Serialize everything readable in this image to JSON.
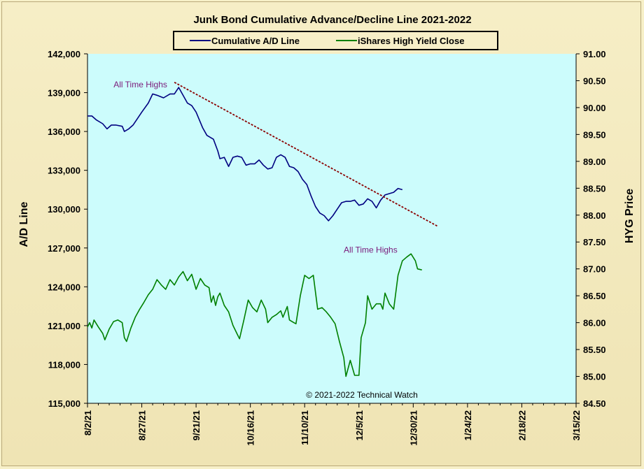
{
  "chart_data": {
    "type": "line",
    "title": "Junk Bond Cumulative Advance/Decline Line 2021-2022",
    "ylabel_left": "A/D Line",
    "ylabel_right": "HYG Price",
    "copyright": "© 2021-2022 Technical Watch",
    "x_tick_labels": [
      "8/2/21",
      "8/27/21",
      "9/21/21",
      "10/16/21",
      "11/10/21",
      "12/5/21",
      "12/30/21",
      "1/24/22",
      "2/18/22",
      "3/15/22"
    ],
    "x_range_days": [
      0,
      225
    ],
    "ylim_left": [
      115000,
      142000
    ],
    "ylim_right": [
      84.5,
      91.0
    ],
    "left_tick_labels": [
      "115,000",
      "118,000",
      "121,000",
      "124,000",
      "127,000",
      "130,000",
      "133,000",
      "136,000",
      "139,000",
      "142,000"
    ],
    "right_tick_labels": [
      "84.50",
      "85.00",
      "85.50",
      "86.00",
      "86.50",
      "87.00",
      "87.50",
      "88.00",
      "88.50",
      "89.00",
      "89.50",
      "90.00",
      "90.50",
      "91.00"
    ],
    "legend_position": "top-center",
    "grid": false,
    "colors": {
      "plot_bg": "#ccfcfc",
      "ad_line": "#000080",
      "hyg": "#008000",
      "trendline": "#8b0000",
      "annotation": "#7a1a7a"
    },
    "annotations": [
      {
        "text": "All Time  Highs",
        "series": "Cumulative A/D Line",
        "x_day": 12,
        "y": 139400
      },
      {
        "text": "All Time  Highs",
        "series": "iShares High Yield Close",
        "x_day": 118,
        "y": 87.3
      }
    ],
    "trendline": {
      "axis": "left",
      "points": [
        [
          40,
          139800
        ],
        [
          161,
          128700
        ]
      ]
    },
    "series": [
      {
        "name": "Cumulative A/D Line",
        "axis": "left",
        "points": [
          [
            0,
            137200
          ],
          [
            2,
            137200
          ],
          [
            4,
            136900
          ],
          [
            7,
            136600
          ],
          [
            9,
            136200
          ],
          [
            11,
            136500
          ],
          [
            13,
            136500
          ],
          [
            16,
            136400
          ],
          [
            17,
            136000
          ],
          [
            19,
            136200
          ],
          [
            21,
            136500
          ],
          [
            23,
            137000
          ],
          [
            25,
            137500
          ],
          [
            28,
            138200
          ],
          [
            30,
            138900
          ],
          [
            32,
            138800
          ],
          [
            35,
            138600
          ],
          [
            38,
            138900
          ],
          [
            40,
            138900
          ],
          [
            42,
            139400
          ],
          [
            44,
            138800
          ],
          [
            46,
            138200
          ],
          [
            48,
            138000
          ],
          [
            50,
            137500
          ],
          [
            53,
            136300
          ],
          [
            55,
            135700
          ],
          [
            58,
            135400
          ],
          [
            60,
            134500
          ],
          [
            61,
            133900
          ],
          [
            63,
            134000
          ],
          [
            65,
            133300
          ],
          [
            67,
            134000
          ],
          [
            69,
            134100
          ],
          [
            71,
            134000
          ],
          [
            73,
            133400
          ],
          [
            75,
            133500
          ],
          [
            77,
            133500
          ],
          [
            79,
            133800
          ],
          [
            81,
            133400
          ],
          [
            83,
            133100
          ],
          [
            85,
            133200
          ],
          [
            87,
            134000
          ],
          [
            89,
            134200
          ],
          [
            91,
            134000
          ],
          [
            93,
            133300
          ],
          [
            95,
            133200
          ],
          [
            97,
            132900
          ],
          [
            99,
            132300
          ],
          [
            101,
            131900
          ],
          [
            103,
            131000
          ],
          [
            105,
            130200
          ],
          [
            107,
            129700
          ],
          [
            109,
            129500
          ],
          [
            111,
            129100
          ],
          [
            113,
            129500
          ],
          [
            115,
            130000
          ],
          [
            117,
            130500
          ],
          [
            119,
            130600
          ],
          [
            121,
            130600
          ],
          [
            123,
            130700
          ],
          [
            125,
            130300
          ],
          [
            127,
            130400
          ],
          [
            129,
            130800
          ],
          [
            131,
            130600
          ],
          [
            133,
            130100
          ],
          [
            135,
            130700
          ],
          [
            137,
            131100
          ],
          [
            139,
            131200
          ],
          [
            141,
            131300
          ],
          [
            143,
            131600
          ],
          [
            145,
            131500
          ]
        ]
      },
      {
        "name": "iShares High Yield Close",
        "axis": "right",
        "points": [
          [
            0,
            85.92
          ],
          [
            1,
            86.0
          ],
          [
            2,
            85.9
          ],
          [
            3,
            86.05
          ],
          [
            5,
            85.92
          ],
          [
            7,
            85.8
          ],
          [
            8,
            85.68
          ],
          [
            10,
            85.88
          ],
          [
            12,
            86.02
          ],
          [
            14,
            86.05
          ],
          [
            16,
            86.0
          ],
          [
            17,
            85.72
          ],
          [
            18,
            85.65
          ],
          [
            20,
            85.9
          ],
          [
            22,
            86.1
          ],
          [
            24,
            86.25
          ],
          [
            26,
            86.38
          ],
          [
            28,
            86.52
          ],
          [
            30,
            86.62
          ],
          [
            32,
            86.8
          ],
          [
            34,
            86.7
          ],
          [
            36,
            86.62
          ],
          [
            38,
            86.8
          ],
          [
            40,
            86.7
          ],
          [
            42,
            86.85
          ],
          [
            44,
            86.95
          ],
          [
            46,
            86.78
          ],
          [
            48,
            86.9
          ],
          [
            50,
            86.62
          ],
          [
            52,
            86.82
          ],
          [
            54,
            86.7
          ],
          [
            56,
            86.65
          ],
          [
            57,
            86.38
          ],
          [
            58,
            86.5
          ],
          [
            59,
            86.32
          ],
          [
            60,
            86.48
          ],
          [
            61,
            86.55
          ],
          [
            63,
            86.32
          ],
          [
            65,
            86.2
          ],
          [
            67,
            85.95
          ],
          [
            69,
            85.78
          ],
          [
            70,
            85.7
          ],
          [
            72,
            86.05
          ],
          [
            74,
            86.42
          ],
          [
            76,
            86.28
          ],
          [
            78,
            86.2
          ],
          [
            80,
            86.42
          ],
          [
            82,
            86.25
          ],
          [
            83,
            86.0
          ],
          [
            85,
            86.1
          ],
          [
            87,
            86.15
          ],
          [
            89,
            86.22
          ],
          [
            90,
            86.1
          ],
          [
            92,
            86.3
          ],
          [
            93,
            86.05
          ],
          [
            95,
            86.0
          ],
          [
            96,
            85.98
          ],
          [
            98,
            86.5
          ],
          [
            100,
            86.88
          ],
          [
            102,
            86.82
          ],
          [
            104,
            86.88
          ],
          [
            106,
            86.25
          ],
          [
            108,
            86.28
          ],
          [
            110,
            86.2
          ],
          [
            112,
            86.1
          ],
          [
            114,
            85.98
          ],
          [
            116,
            85.65
          ],
          [
            118,
            85.35
          ],
          [
            119,
            85.0
          ],
          [
            121,
            85.3
          ],
          [
            123,
            85.02
          ],
          [
            125,
            85.02
          ],
          [
            126,
            85.72
          ],
          [
            128,
            86.0
          ],
          [
            129,
            86.5
          ],
          [
            131,
            86.25
          ],
          [
            133,
            86.35
          ],
          [
            135,
            86.35
          ],
          [
            136,
            86.25
          ],
          [
            137,
            86.55
          ],
          [
            139,
            86.35
          ],
          [
            141,
            86.25
          ],
          [
            143,
            86.88
          ],
          [
            145,
            87.15
          ],
          [
            147,
            87.22
          ],
          [
            149,
            87.28
          ],
          [
            151,
            87.15
          ],
          [
            152,
            87.0
          ],
          [
            154,
            86.98
          ]
        ]
      }
    ]
  }
}
